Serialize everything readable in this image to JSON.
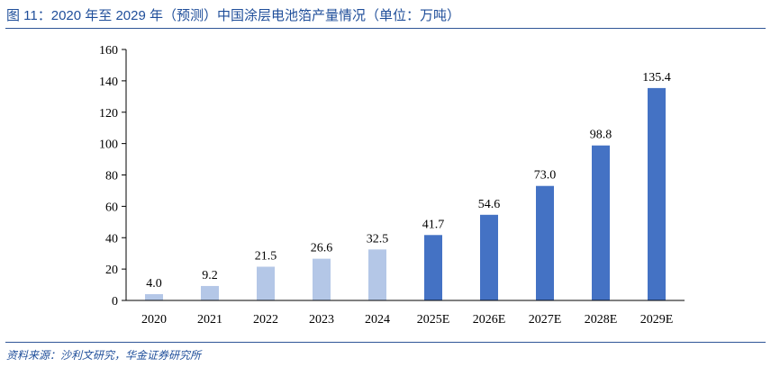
{
  "title": "图 11：2020 年至 2029 年（预测）中国涂层电池箔产量情况（单位：万吨）",
  "source": "资料来源：沙利文研究，华金证券研究所",
  "colors": {
    "title_text": "#1f4e9a",
    "rule": "#2f5597",
    "actual_bar": "#b4c7e7",
    "forecast_bar": "#4472c4",
    "axis": "#000000"
  },
  "chart_data": {
    "type": "bar",
    "categories": [
      "2020",
      "2021",
      "2022",
      "2023",
      "2024",
      "2025E",
      "2026E",
      "2027E",
      "2028E",
      "2029E"
    ],
    "values": [
      4.0,
      9.2,
      21.5,
      26.6,
      32.5,
      41.7,
      54.6,
      73.0,
      98.8,
      135.4
    ],
    "value_labels": [
      "4.0",
      "9.2",
      "21.5",
      "26.6",
      "32.5",
      "41.7",
      "54.6",
      "73.0",
      "98.8",
      "135.4"
    ],
    "forecast": [
      false,
      false,
      false,
      false,
      false,
      true,
      true,
      true,
      true,
      true
    ],
    "ylim": [
      0,
      160
    ],
    "yticks": [
      0,
      20,
      40,
      60,
      80,
      100,
      120,
      140,
      160
    ],
    "grid": false,
    "legend": "none"
  }
}
